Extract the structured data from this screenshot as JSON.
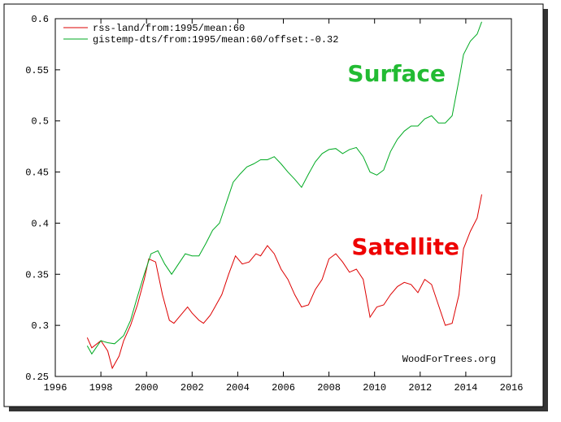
{
  "chart_data": {
    "type": "line",
    "xlim": [
      1996,
      2016
    ],
    "xticks": [
      1996,
      1998,
      2000,
      2002,
      2004,
      2006,
      2008,
      2010,
      2012,
      2014,
      2016
    ],
    "ylim": [
      0.25,
      0.6
    ],
    "yticks": [
      0.25,
      0.3,
      0.35,
      0.4,
      0.45,
      0.5,
      0.55,
      0.6
    ],
    "legend": "top-left",
    "series": [
      {
        "name": "rss-land/from:1995/mean:60",
        "color": "#dd0000",
        "x": [
          1997.4,
          1997.6,
          1998.0,
          1998.3,
          1998.5,
          1998.8,
          1999.0,
          1999.3,
          1999.6,
          1999.9,
          2000.1,
          2000.4,
          2000.7,
          2001.0,
          2001.2,
          2001.5,
          2001.8,
          2002.0,
          2002.3,
          2002.5,
          2002.8,
          2003.0,
          2003.3,
          2003.6,
          2003.9,
          2004.2,
          2004.5,
          2004.8,
          2005.0,
          2005.3,
          2005.6,
          2005.9,
          2006.2,
          2006.5,
          2006.8,
          2007.1,
          2007.4,
          2007.7,
          2008.0,
          2008.3,
          2008.6,
          2008.9,
          2009.2,
          2009.5,
          2009.8,
          2010.1,
          2010.4,
          2010.7,
          2011.0,
          2011.3,
          2011.6,
          2011.9,
          2012.2,
          2012.5,
          2012.8,
          2013.1,
          2013.4,
          2013.7,
          2013.9,
          2014.2,
          2014.5,
          2014.7
        ],
        "values": [
          0.288,
          0.278,
          0.285,
          0.275,
          0.258,
          0.27,
          0.285,
          0.3,
          0.32,
          0.345,
          0.365,
          0.362,
          0.33,
          0.305,
          0.302,
          0.31,
          0.318,
          0.312,
          0.305,
          0.302,
          0.31,
          0.318,
          0.33,
          0.35,
          0.368,
          0.36,
          0.362,
          0.37,
          0.368,
          0.378,
          0.37,
          0.355,
          0.345,
          0.33,
          0.318,
          0.32,
          0.335,
          0.345,
          0.365,
          0.37,
          0.362,
          0.352,
          0.355,
          0.345,
          0.308,
          0.318,
          0.32,
          0.33,
          0.338,
          0.342,
          0.34,
          0.332,
          0.345,
          0.34,
          0.32,
          0.3,
          0.302,
          0.33,
          0.375,
          0.392,
          0.405,
          0.428
        ]
      },
      {
        "name": "gistemp-dts/from:1995/mean:60/offset:-0.32",
        "color": "#00aa22",
        "x": [
          1997.4,
          1997.6,
          1998.0,
          1998.3,
          1998.6,
          1999.0,
          1999.3,
          1999.6,
          1999.9,
          2000.2,
          2000.5,
          2000.8,
          2001.1,
          2001.4,
          2001.7,
          2002.0,
          2002.3,
          2002.6,
          2002.9,
          2003.2,
          2003.5,
          2003.8,
          2004.1,
          2004.4,
          2004.7,
          2005.0,
          2005.3,
          2005.6,
          2005.9,
          2006.2,
          2006.5,
          2006.8,
          2007.1,
          2007.4,
          2007.7,
          2008.0,
          2008.3,
          2008.6,
          2008.9,
          2009.2,
          2009.5,
          2009.8,
          2010.1,
          2010.4,
          2010.7,
          2011.0,
          2011.3,
          2011.6,
          2011.9,
          2012.2,
          2012.5,
          2012.8,
          2013.1,
          2013.4,
          2013.7,
          2013.9,
          2014.2,
          2014.5,
          2014.7
        ],
        "values": [
          0.28,
          0.272,
          0.285,
          0.283,
          0.282,
          0.29,
          0.305,
          0.328,
          0.35,
          0.37,
          0.373,
          0.36,
          0.35,
          0.36,
          0.37,
          0.368,
          0.368,
          0.38,
          0.393,
          0.4,
          0.42,
          0.44,
          0.448,
          0.455,
          0.458,
          0.462,
          0.462,
          0.465,
          0.458,
          0.45,
          0.443,
          0.435,
          0.448,
          0.46,
          0.468,
          0.472,
          0.473,
          0.468,
          0.472,
          0.474,
          0.465,
          0.45,
          0.447,
          0.452,
          0.47,
          0.482,
          0.49,
          0.495,
          0.495,
          0.502,
          0.505,
          0.498,
          0.498,
          0.505,
          0.54,
          0.565,
          0.578,
          0.585,
          0.597
        ]
      }
    ],
    "annotations": [
      {
        "text": "Surface",
        "color": "#22bb33"
      },
      {
        "text": "Satellite",
        "color": "#ee0000"
      }
    ],
    "watermark": "WoodForTrees.org"
  }
}
